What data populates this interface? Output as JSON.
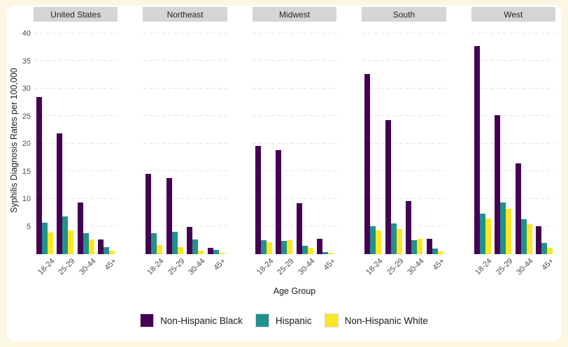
{
  "page": {
    "background": "#fcf7e2",
    "card_background": "#ffffff"
  },
  "style": {
    "strip_bg": "#d5d5d5",
    "grid_color": "#e3e3e3",
    "tick_color": "#4d4d4d",
    "axis_title_color": "#1a1a1a"
  },
  "chart_data": {
    "type": "bar",
    "title": "",
    "xlabel": "Age Group",
    "ylabel": "Syphilis Diagnosis Rates per 100,000",
    "ylim": [
      0,
      41
    ],
    "yticks": [
      5,
      10,
      15,
      20,
      25,
      30,
      35,
      40
    ],
    "grid": "horizontal dashed gridlines every 5 units including baseline 0",
    "legend_position": "bottom-center",
    "categories": [
      "18-24",
      "25-29",
      "30-44",
      "45+"
    ],
    "series_names": [
      "Non-Hispanic Black",
      "Hispanic",
      "Non-Hispanic White"
    ],
    "series_colors": [
      "#440154",
      "#21918c",
      "#fde725"
    ],
    "facet_labels": [
      "United States",
      "Northeast",
      "Midwest",
      "South",
      "West"
    ],
    "facets": [
      {
        "label": "United States",
        "series": [
          {
            "name": "Non-Hispanic Black",
            "values": [
              28.5,
              21.9,
              9.4,
              2.6
            ]
          },
          {
            "name": "Hispanic",
            "values": [
              5.7,
              6.8,
              3.8,
              1.3
            ]
          },
          {
            "name": "Non-Hispanic White",
            "values": [
              3.9,
              4.3,
              2.6,
              0.6
            ]
          }
        ]
      },
      {
        "label": "Northeast",
        "series": [
          {
            "name": "Non-Hispanic Black",
            "values": [
              14.5,
              13.8,
              4.9,
              1.1
            ]
          },
          {
            "name": "Hispanic",
            "values": [
              3.8,
              4.1,
              2.6,
              0.8
            ]
          },
          {
            "name": "Non-Hispanic White",
            "values": [
              1.6,
              1.3,
              0.6,
              0.3
            ]
          }
        ]
      },
      {
        "label": "Midwest",
        "series": [
          {
            "name": "Non-Hispanic Black",
            "values": [
              19.6,
              18.9,
              9.3,
              2.8
            ]
          },
          {
            "name": "Hispanic",
            "values": [
              2.5,
              2.4,
              1.5,
              0.4
            ]
          },
          {
            "name": "Non-Hispanic White",
            "values": [
              2.1,
              2.5,
              1.1,
              0.2
            ]
          }
        ]
      },
      {
        "label": "South",
        "series": [
          {
            "name": "Non-Hispanic Black",
            "values": [
              32.7,
              24.3,
              9.6,
              2.8
            ]
          },
          {
            "name": "Hispanic",
            "values": [
              5.1,
              5.6,
              2.5,
              1.0
            ]
          },
          {
            "name": "Non-Hispanic White",
            "values": [
              4.3,
              4.5,
              2.8,
              0.5
            ]
          }
        ]
      },
      {
        "label": "West",
        "series": [
          {
            "name": "Non-Hispanic Black",
            "values": [
              37.7,
              25.2,
              16.5,
              5.1
            ]
          },
          {
            "name": "Hispanic",
            "values": [
              7.4,
              9.4,
              6.3,
              2.0
            ]
          },
          {
            "name": "Non-Hispanic White",
            "values": [
              6.5,
              8.2,
              5.5,
              1.2
            ]
          }
        ]
      }
    ],
    "legend": [
      {
        "label": "Non-Hispanic Black",
        "color": "#440154"
      },
      {
        "label": "Hispanic",
        "color": "#21918c"
      },
      {
        "label": "Non-Hispanic White",
        "color": "#fde725"
      }
    ]
  }
}
